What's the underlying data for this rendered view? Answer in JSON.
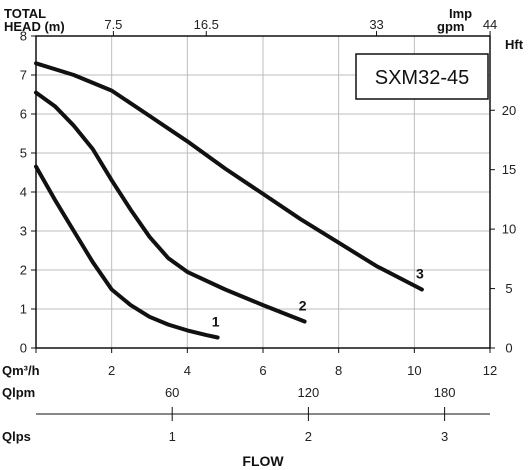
{
  "chart_data": {
    "type": "line",
    "model": "SXM32-45",
    "head_axis_label_line1": "TOTAL",
    "head_axis_label_line2": "HEAD (m)",
    "hft_label": "Hft",
    "imp_label_line1": "Imp",
    "imp_label_line2": "gpm",
    "qm3h_label": "Qm³/h",
    "qlpm_label": "Qlpm",
    "qlps_label": "Qlps",
    "flow_label": "FLOW",
    "x_range": [
      0,
      12
    ],
    "y_range": [
      0,
      8
    ],
    "x_ticks": [
      "0",
      "2",
      "4",
      "6",
      "8",
      "10",
      "12"
    ],
    "y_ticks": [
      "0",
      "1",
      "2",
      "3",
      "4",
      "5",
      "6",
      "7",
      "8"
    ],
    "hft_ticks": [
      {
        "value": 0,
        "label": "0"
      },
      {
        "value": 5,
        "label": "5"
      },
      {
        "value": 10,
        "label": "10"
      },
      {
        "value": 15,
        "label": "15"
      },
      {
        "value": 20,
        "label": "20"
      }
    ],
    "imp_gpm_ticks": [
      {
        "value": 7.5,
        "label": "7.5"
      },
      {
        "value": 16.5,
        "label": "16.5"
      },
      {
        "value": 33,
        "label": "33"
      },
      {
        "value": 44,
        "label": "44"
      }
    ],
    "qlpm_ticks": [
      {
        "value": 60,
        "label": "60"
      },
      {
        "value": 120,
        "label": "120"
      },
      {
        "value": 180,
        "label": "180"
      }
    ],
    "qlps_ticks": [
      {
        "value": 1,
        "label": "1"
      },
      {
        "value": 2,
        "label": "2"
      },
      {
        "value": 3,
        "label": "3"
      }
    ],
    "grid": true,
    "series": [
      {
        "name": "1",
        "x": [
          0,
          0.5,
          1,
          1.5,
          2,
          2.5,
          3,
          3.5,
          4,
          4.5,
          4.8
        ],
        "y": [
          4.65,
          3.8,
          3.0,
          2.2,
          1.5,
          1.1,
          0.8,
          0.6,
          0.45,
          0.33,
          0.27
        ]
      },
      {
        "name": "2",
        "x": [
          0,
          0.5,
          1,
          1.5,
          2,
          2.5,
          3,
          3.5,
          4,
          5,
          6,
          7.1
        ],
        "y": [
          6.55,
          6.2,
          5.7,
          5.1,
          4.3,
          3.55,
          2.85,
          2.3,
          1.95,
          1.5,
          1.1,
          0.68
        ]
      },
      {
        "name": "3",
        "x": [
          0,
          1,
          2,
          3,
          4,
          5,
          6,
          7,
          8,
          9,
          10.2
        ],
        "y": [
          7.3,
          7.0,
          6.6,
          5.95,
          5.3,
          4.6,
          3.95,
          3.3,
          2.7,
          2.1,
          1.5
        ]
      }
    ]
  }
}
